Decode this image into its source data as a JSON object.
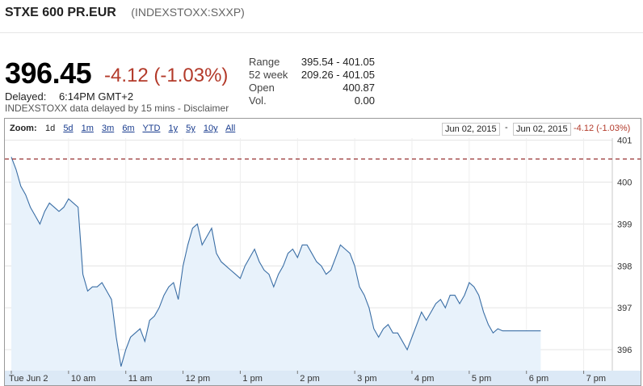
{
  "header": {
    "name": "STXE 600 PR.EUR",
    "symbol": "(INDEXSTOXX:SXXP)"
  },
  "quote": {
    "price": "396.45",
    "change": "-4.12 (-1.03%)",
    "delayed_label": "Delayed:",
    "delayed_time": "6:14PM GMT+2",
    "disclaimer": "INDEXSTOXX data delayed by 15 mins - Disclaimer"
  },
  "stats": [
    {
      "label": "Range",
      "value": "395.54 - 401.05"
    },
    {
      "label": "52 week",
      "value": "209.26 - 401.05"
    },
    {
      "label": "Open",
      "value": "400.87"
    },
    {
      "label": "Vol.",
      "value": "0.00"
    }
  ],
  "zoom": {
    "label": "Zoom:",
    "options": [
      "1d",
      "5d",
      "1m",
      "3m",
      "6m",
      "YTD",
      "1y",
      "5y",
      "10y",
      "All"
    ],
    "selected": "1d",
    "date_from": "Jun 02, 2015",
    "date_to": "Jun 02, 2015",
    "separator": "-",
    "range_change": "-4.12 (-1.03%)"
  },
  "colors": {
    "line": "#3a6ea5",
    "area": "#e8f2fb",
    "negative": "#b33a2a",
    "prev_close": "#8b1a1a",
    "axis_band": "#dce9f6"
  },
  "chart_data": {
    "type": "area",
    "xlabel": "",
    "ylabel": "",
    "ylim": [
      395.5,
      401.05
    ],
    "x_ticks": [
      "Tue Jun 2",
      "10 am",
      "11 am",
      "12 pm",
      "1 pm",
      "2 pm",
      "3 pm",
      "4 pm",
      "5 pm",
      "6 pm",
      "7 pm"
    ],
    "y_ticks": [
      396,
      397,
      398,
      399,
      400,
      401
    ],
    "grid": true,
    "previous_close": 400.55,
    "series": [
      {
        "x": [
          "09:00",
          "09:05",
          "09:10",
          "09:15",
          "09:20",
          "09:25",
          "09:30",
          "09:35",
          "09:40",
          "09:45",
          "09:50",
          "09:55",
          "10:00",
          "10:05",
          "10:10",
          "10:15",
          "10:20",
          "10:25",
          "10:30",
          "10:35",
          "10:40",
          "10:45",
          "10:50",
          "10:55",
          "11:00",
          "11:05",
          "11:10",
          "11:15",
          "11:20",
          "11:25",
          "11:30",
          "11:35",
          "11:40",
          "11:45",
          "11:50",
          "11:55",
          "12:00",
          "12:05",
          "12:10",
          "12:15",
          "12:20",
          "12:25",
          "12:30",
          "12:35",
          "12:40",
          "12:45",
          "12:50",
          "12:55",
          "13:00",
          "13:05",
          "13:10",
          "13:15",
          "13:20",
          "13:25",
          "13:30",
          "13:35",
          "13:40",
          "13:45",
          "13:50",
          "13:55",
          "14:00",
          "14:05",
          "14:10",
          "14:15",
          "14:20",
          "14:25",
          "14:30",
          "14:35",
          "14:40",
          "14:45",
          "14:50",
          "14:55",
          "15:00",
          "15:05",
          "15:10",
          "15:15",
          "15:20",
          "15:25",
          "15:30",
          "15:35",
          "15:40",
          "15:45",
          "15:50",
          "15:55",
          "16:00",
          "16:05",
          "16:10",
          "16:15",
          "16:20",
          "16:25",
          "16:30",
          "16:35",
          "16:40",
          "16:45",
          "16:50",
          "16:55",
          "17:00",
          "17:05",
          "17:10",
          "17:15",
          "17:20",
          "17:25",
          "17:30",
          "17:35",
          "17:40",
          "17:45",
          "17:50",
          "17:55",
          "18:00",
          "18:05",
          "18:10",
          "18:15"
        ],
        "values": [
          400.6,
          400.3,
          399.9,
          399.7,
          399.4,
          399.2,
          399.0,
          399.3,
          399.5,
          399.4,
          399.3,
          399.4,
          399.6,
          399.5,
          399.4,
          397.8,
          397.4,
          397.5,
          397.5,
          397.6,
          397.4,
          397.2,
          396.3,
          395.6,
          396.0,
          396.3,
          396.4,
          396.5,
          396.2,
          396.7,
          396.8,
          397.0,
          397.3,
          397.5,
          397.6,
          397.2,
          398.0,
          398.5,
          398.9,
          399.0,
          398.5,
          398.7,
          398.9,
          398.3,
          398.1,
          398.0,
          397.9,
          397.8,
          397.7,
          398.0,
          398.2,
          398.4,
          398.1,
          397.9,
          397.8,
          397.5,
          397.8,
          398.0,
          398.3,
          398.4,
          398.2,
          398.5,
          398.5,
          398.3,
          398.1,
          398.0,
          397.8,
          397.9,
          398.2,
          398.5,
          398.4,
          398.3,
          398.0,
          397.5,
          397.3,
          397.0,
          396.5,
          396.3,
          396.5,
          396.6,
          396.4,
          396.4,
          396.2,
          396.0,
          396.3,
          396.6,
          396.9,
          396.7,
          396.9,
          397.1,
          397.2,
          397.0,
          397.3,
          397.3,
          397.1,
          397.3,
          397.6,
          397.5,
          397.3,
          396.9,
          396.6,
          396.4,
          396.5,
          396.45,
          396.45,
          396.45,
          396.45,
          396.45,
          396.45,
          396.45,
          396.45,
          396.45
        ]
      }
    ]
  }
}
